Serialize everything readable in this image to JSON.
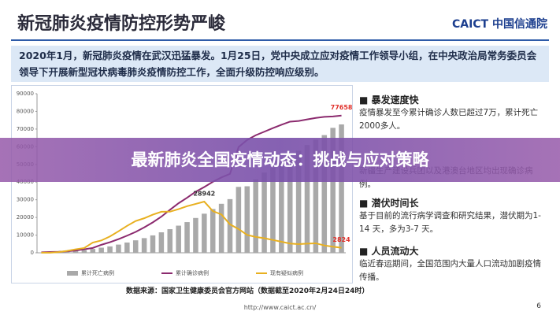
{
  "header": {
    "title": "新冠肺炎疫情防控形势严峻",
    "logo": "CAICT 中国信通院"
  },
  "intro": "2020年1月，新冠肺炎疫情在武汉迅猛暴发。1月25日，党中央成立应对疫情工作领导小组，在中央政治局常务委员会领导下开展新型冠状病毒肺炎疫情防控工作，全面升级防控响应级别。",
  "chart_data": {
    "type": "combo",
    "categories": [
      null,
      null,
      null,
      null,
      null,
      null,
      null,
      null,
      null,
      null,
      null,
      null,
      null,
      null,
      null,
      null,
      null,
      null,
      null,
      null,
      null,
      null,
      null,
      null,
      null,
      null,
      null,
      null,
      null,
      null,
      null,
      null,
      null,
      null,
      null,
      null
    ],
    "ylim": [
      0,
      90000
    ],
    "yticks": [
      0,
      10000,
      20000,
      30000,
      40000,
      50000,
      60000,
      70000,
      80000,
      90000
    ],
    "y2lim": [
      0,
      3300
    ],
    "grid": false,
    "series": [
      {
        "name": "累计死亡病例",
        "kind": "bar",
        "axis": "y2",
        "color": "#a9a9a9",
        "values": [
          6,
          9,
          17,
          25,
          41,
          56,
          80,
          106,
          132,
          170,
          213,
          259,
          304,
          361,
          425,
          490,
          563,
          636,
          722,
          811,
          908,
          1016,
          1113,
          1367,
          1380,
          1523,
          1665,
          1770,
          1868,
          2004,
          2118,
          2236,
          2345,
          2442,
          2592,
          2663
        ]
      },
      {
        "name": "累计确诊病例",
        "kind": "line",
        "color": "#8b2a6e",
        "values": [
          291,
          440,
          571,
          830,
          1287,
          1975,
          2744,
          4515,
          5974,
          7711,
          9692,
          11791,
          14380,
          17205,
          20438,
          24324,
          28018,
          31161,
          34546,
          37198,
          40171,
          42638,
          44653,
          59804,
          63851,
          66492,
          68500,
          70548,
          72436,
          74185,
          74576,
          75465,
          76288,
          76936,
          77150,
          77658
        ]
      },
      {
        "name": "现有疑似病例",
        "kind": "line",
        "color": "#e8b020",
        "values": [
          54,
          37,
          393,
          1072,
          1965,
          2684,
          5794,
          6973,
          9239,
          12167,
          15238,
          17988,
          19544,
          21558,
          23214,
          23260,
          24702,
          26359,
          27657,
          28942,
          23589,
          21675,
          16067,
          13435,
          10109,
          8969,
          8228,
          7264,
          6242,
          5248,
          4922,
          5206,
          5365,
          4148,
          3434,
          2824
        ]
      }
    ]
  },
  "bullets": [
    {
      "head": "暴发速度快",
      "body": "疫情暴发至今累计确诊人数已超过7万，累计死亡2000多人。"
    },
    {
      "head": "",
      "body": "新疆生产建设兵团以及港澳台地区均出现确诊病例。"
    },
    {
      "head": "潜伏时间长",
      "body": "基于目前的流行病学调查和研究结果，潜伏期为1-14 天，多为3-7 天。"
    },
    {
      "head": "人员流动大",
      "body": "临近春运期间，全国范围内大量人口流动加剧疫情传播。"
    }
  ],
  "footer": {
    "source": "数据来源：国家卫生健康委员会官方网站（数据截至2020年2月24日24时）",
    "url": "http://www.caict.ac.cn/",
    "page": "6"
  },
  "banner": "最新肺炎全国疫情动态：挑战与应对策略"
}
